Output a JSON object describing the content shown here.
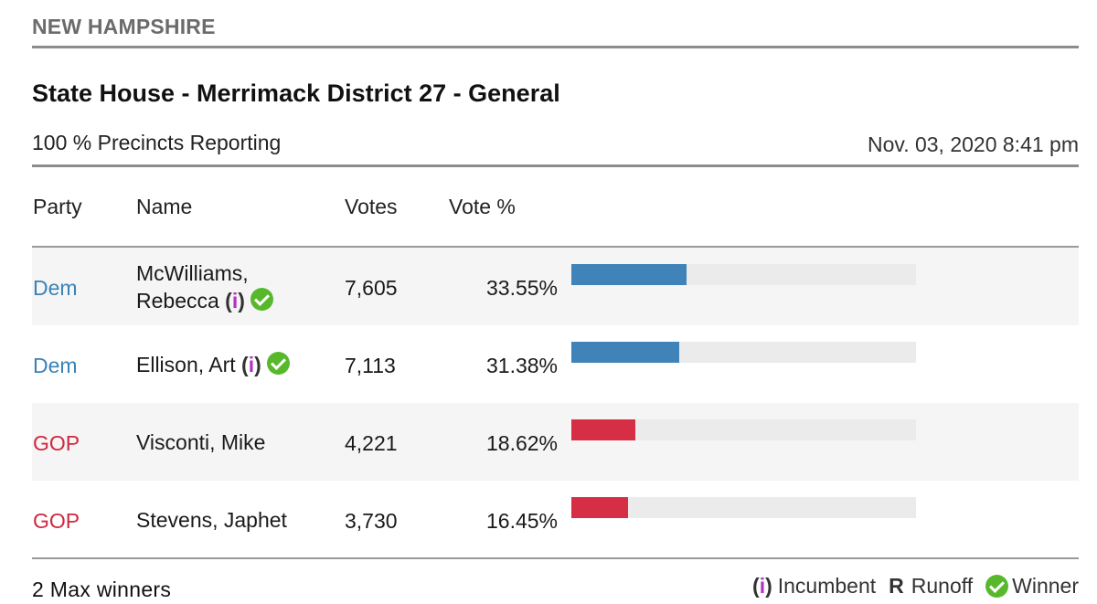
{
  "header": {
    "state": "NEW HAMPSHIRE",
    "race_title": "State House - Merrimack District 27 - General",
    "reporting": "100 % Precincts Reporting",
    "timestamp": "Nov. 03, 2020 8:41 pm"
  },
  "columns": {
    "party": "Party",
    "name": "Name",
    "votes": "Votes",
    "pct": "Vote %"
  },
  "rows": [
    {
      "party": "Dem",
      "name_line1": "McWilliams,",
      "name_line2": "Rebecca",
      "incumbent": true,
      "winner": true,
      "votes": "7,605",
      "pct": "33.55%",
      "share": 0.3355
    },
    {
      "party": "Dem",
      "name_line1": "Ellison, Art",
      "incumbent": true,
      "winner": true,
      "votes": "7,113",
      "pct": "31.38%",
      "share": 0.3138
    },
    {
      "party": "GOP",
      "name_line1": "Visconti, Mike",
      "incumbent": false,
      "winner": false,
      "votes": "4,221",
      "pct": "18.62%",
      "share": 0.1862
    },
    {
      "party": "GOP",
      "name_line1": "Stevens, Japhet",
      "incumbent": false,
      "winner": false,
      "votes": "3,730",
      "pct": "16.45%",
      "share": 0.1645
    }
  ],
  "footer": {
    "max_winners": "2 Max winners",
    "legend": {
      "incumbent_symbol_open": "(",
      "incumbent_symbol_i": "i",
      "incumbent_symbol_close": ")",
      "incumbent_label": "Incumbent",
      "runoff_symbol": "R",
      "runoff_label": "Runoff",
      "winner_label": "Winner"
    }
  },
  "colors": {
    "dem": "#3f83b8",
    "gop": "#d62f45",
    "incumbent_i": "#b72ec4",
    "winner_check": "#58b82c",
    "bar_track": "#ebebeb"
  },
  "icons": {
    "winner": "check-circle-icon"
  }
}
